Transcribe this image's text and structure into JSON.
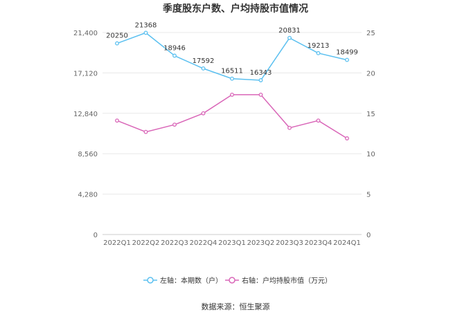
{
  "chart_data": {
    "type": "line",
    "title": "季度股东户数、户均持股市值情况",
    "categories": [
      "2022Q1",
      "2022Q2",
      "2022Q3",
      "2022Q4",
      "2023Q1",
      "2023Q2",
      "2023Q3",
      "2023Q4",
      "2024Q1"
    ],
    "series": [
      {
        "name": "左轴：本期数（户）",
        "axis": "left",
        "color": "#5bc0f0",
        "values": [
          20250,
          21368,
          18946,
          17592,
          16511,
          16343,
          20831,
          19213,
          18499
        ],
        "labels": [
          "20250",
          "21368",
          "18946",
          "17592",
          "16511",
          "16343",
          "20831",
          "19213",
          "18499"
        ]
      },
      {
        "name": "右轴：户均持股市值（万元）",
        "axis": "right",
        "color": "#d966b8",
        "values": [
          14.1,
          12.7,
          13.6,
          15.0,
          17.3,
          17.3,
          13.2,
          14.1,
          11.9
        ]
      }
    ],
    "left_axis": {
      "min": 0,
      "max": 21400,
      "ticks": [
        0,
        4280,
        8560,
        12840,
        17120,
        21400
      ],
      "tick_labels": [
        "0",
        "4,280",
        "8,560",
        "12,840",
        "17,120",
        "21,400"
      ]
    },
    "right_axis": {
      "min": 0,
      "max": 25,
      "ticks": [
        0,
        5,
        10,
        15,
        20,
        25
      ],
      "tick_labels": [
        "0",
        "5",
        "10",
        "15",
        "20",
        "25"
      ]
    },
    "grid": true,
    "legend_position": "bottom-center"
  },
  "source_text": "数据来源：恒生聚源"
}
